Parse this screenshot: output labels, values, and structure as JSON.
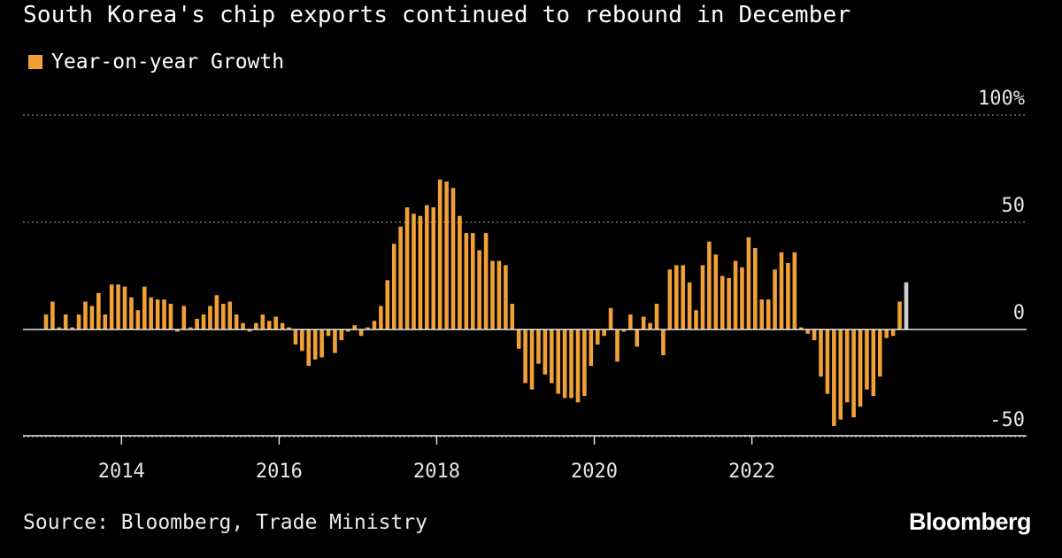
{
  "header": {
    "title": "South Korea's chip exports continued to rebound in December"
  },
  "legend": {
    "label": "Year-on-year Growth",
    "color": "#f0a037"
  },
  "footer": {
    "source": "Source: Bloomberg, Trade Ministry",
    "brand": "Bloomberg"
  },
  "chart_data": {
    "type": "bar",
    "title": "South Korea's chip exports continued to rebound in December",
    "xlabel": "",
    "ylabel": "",
    "ylim": [
      -50,
      100
    ],
    "y_ticks": [
      {
        "value": 100,
        "label": "100%"
      },
      {
        "value": 50,
        "label": "50"
      },
      {
        "value": 0,
        "label": "0"
      },
      {
        "value": -50,
        "label": "-50"
      }
    ],
    "x_ticks": [
      {
        "value": "2014-01",
        "label": "2014"
      },
      {
        "value": "2016-01",
        "label": "2016"
      },
      {
        "value": "2018-01",
        "label": "2018"
      },
      {
        "value": "2020-01",
        "label": "2020"
      },
      {
        "value": "2022-01",
        "label": "2022"
      }
    ],
    "x_range": [
      "2012-10",
      "2024-12"
    ],
    "grid": "horizontal dotted",
    "legend_position": "top-left",
    "bar_color": "#f0a037",
    "highlight_color": "#cfcfcf",
    "series": [
      {
        "name": "Year-on-year Growth",
        "x": [
          "2013-01",
          "2013-02",
          "2013-03",
          "2013-04",
          "2013-05",
          "2013-06",
          "2013-07",
          "2013-08",
          "2013-09",
          "2013-10",
          "2013-11",
          "2013-12",
          "2014-01",
          "2014-02",
          "2014-03",
          "2014-04",
          "2014-05",
          "2014-06",
          "2014-07",
          "2014-08",
          "2014-09",
          "2014-10",
          "2014-11",
          "2014-12",
          "2015-01",
          "2015-02",
          "2015-03",
          "2015-04",
          "2015-05",
          "2015-06",
          "2015-07",
          "2015-08",
          "2015-09",
          "2015-10",
          "2015-11",
          "2015-12",
          "2016-01",
          "2016-02",
          "2016-03",
          "2016-04",
          "2016-05",
          "2016-06",
          "2016-07",
          "2016-08",
          "2016-09",
          "2016-10",
          "2016-11",
          "2016-12",
          "2017-01",
          "2017-02",
          "2017-03",
          "2017-04",
          "2017-05",
          "2017-06",
          "2017-07",
          "2017-08",
          "2017-09",
          "2017-10",
          "2017-11",
          "2017-12",
          "2018-01",
          "2018-02",
          "2018-03",
          "2018-04",
          "2018-05",
          "2018-06",
          "2018-07",
          "2018-08",
          "2018-09",
          "2018-10",
          "2018-11",
          "2018-12",
          "2019-01",
          "2019-02",
          "2019-03",
          "2019-04",
          "2019-05",
          "2019-06",
          "2019-07",
          "2019-08",
          "2019-09",
          "2019-10",
          "2019-11",
          "2019-12",
          "2020-01",
          "2020-02",
          "2020-03",
          "2020-04",
          "2020-05",
          "2020-06",
          "2020-07",
          "2020-08",
          "2020-09",
          "2020-10",
          "2020-11",
          "2020-12",
          "2021-01",
          "2021-02",
          "2021-03",
          "2021-04",
          "2021-05",
          "2021-06",
          "2021-07",
          "2021-08",
          "2021-09",
          "2021-10",
          "2021-11",
          "2021-12",
          "2022-01",
          "2022-02",
          "2022-03",
          "2022-04",
          "2022-05",
          "2022-06",
          "2022-07",
          "2022-08",
          "2022-09",
          "2022-10",
          "2022-11",
          "2022-12",
          "2023-01",
          "2023-02",
          "2023-03",
          "2023-04",
          "2023-05",
          "2023-06",
          "2023-07",
          "2023-08",
          "2023-09",
          "2023-10",
          "2023-11",
          "2023-12"
        ],
        "values": [
          7,
          13,
          1,
          7,
          1,
          7,
          13,
          11,
          17,
          7,
          21,
          21,
          20,
          15,
          9,
          20,
          15,
          14,
          14,
          12,
          -1,
          11,
          1,
          5,
          7,
          11,
          16,
          12,
          13,
          7,
          3,
          -1,
          3,
          7,
          4,
          6,
          3,
          1,
          -7,
          -10,
          -17,
          -14,
          -13,
          -3,
          -11,
          -5,
          -1,
          2,
          -3,
          1,
          4,
          11,
          23,
          40,
          48,
          57,
          54,
          53,
          58,
          57,
          70,
          69,
          66,
          53,
          45,
          45,
          37,
          45,
          32,
          32,
          30,
          12,
          -9,
          -25,
          -28,
          -16,
          -21,
          -25,
          -30,
          -32,
          -32,
          -34,
          -31,
          -17,
          -7,
          -3,
          10,
          -15,
          -1,
          7,
          -8,
          6,
          3,
          12,
          -12,
          28,
          30,
          30,
          22,
          9,
          30,
          41,
          35,
          25,
          24,
          32,
          29,
          43,
          38,
          14,
          14,
          28,
          36,
          31,
          36,
          1,
          -2,
          -5,
          -22,
          -30,
          -45,
          -42,
          -34,
          -41,
          -36,
          -28,
          -31,
          -22,
          -4,
          -3,
          13,
          22
        ]
      }
    ]
  }
}
